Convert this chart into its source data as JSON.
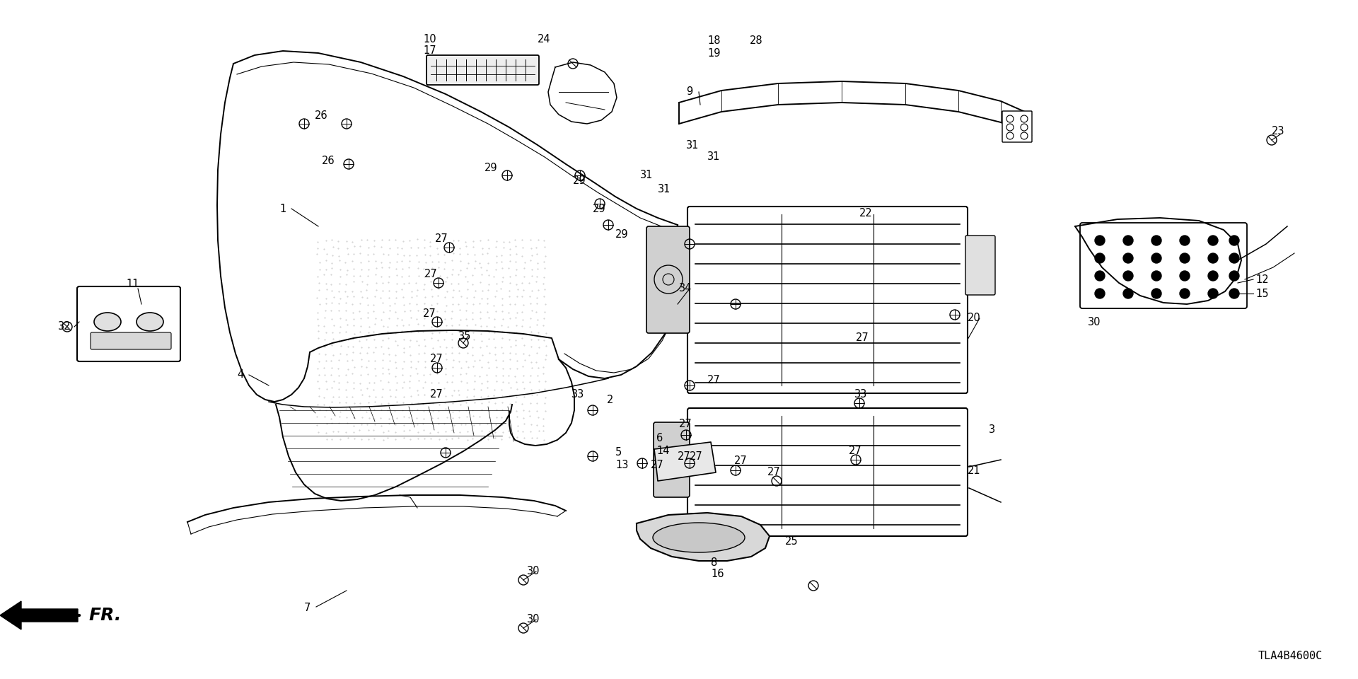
{
  "bg_color": "#ffffff",
  "line_color": "#000000",
  "part_code": "TLA4B4600C",
  "lw_main": 1.4,
  "lw_thin": 0.8,
  "lw_med": 1.1,
  "label_fontsize": 10.5,
  "dot_color": "#aaaaaa",
  "gray_fill": "#d8d8d8"
}
